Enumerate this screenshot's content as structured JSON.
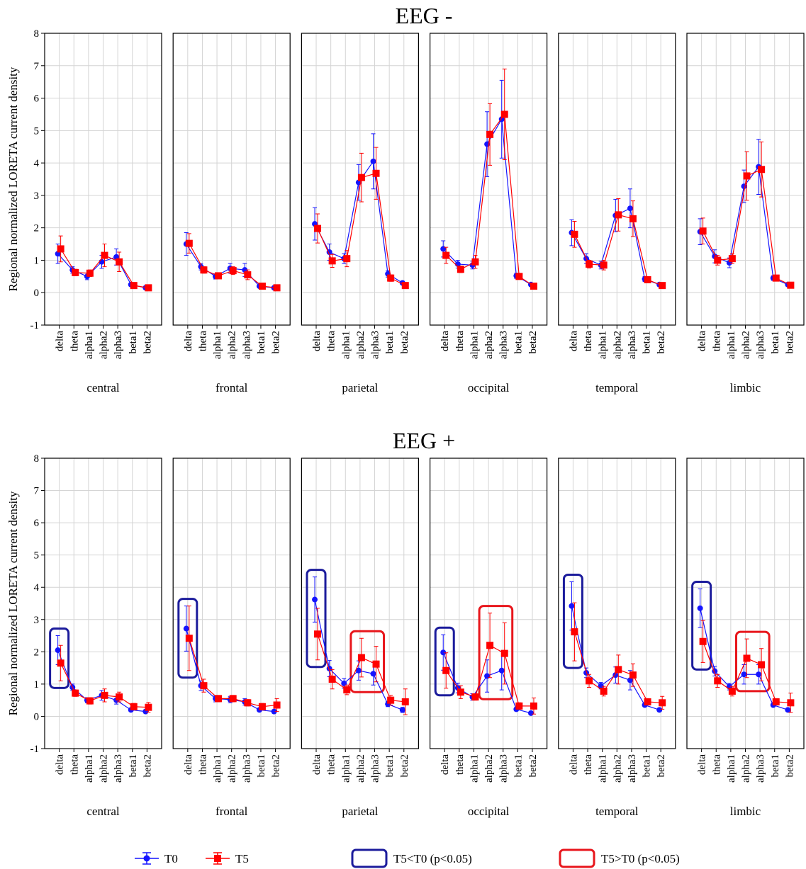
{
  "chart_data": [
    {
      "type": "line",
      "title": "EEG -",
      "ylabel": "Regional normalized LORETA current density",
      "xlabel": "central",
      "categories": [
        "delta",
        "theta",
        "alpha1",
        "alpha2",
        "alpha3",
        "beta1",
        "beta2"
      ],
      "ylim": [
        -1,
        8
      ],
      "yticks": [
        -1,
        0,
        1,
        2,
        3,
        4,
        5,
        6,
        7,
        8
      ],
      "grid": true,
      "series": [
        {
          "name": "T0",
          "color": "#1414ff",
          "marker": "circle",
          "values": [
            1.2,
            0.7,
            0.5,
            0.95,
            1.1,
            0.25,
            0.15
          ],
          "errors": [
            0.3,
            0.1,
            0.1,
            0.2,
            0.25,
            0.05,
            0.03
          ]
        },
        {
          "name": "T5",
          "color": "#ff0000",
          "marker": "square",
          "values": [
            1.35,
            0.62,
            0.6,
            1.15,
            0.95,
            0.22,
            0.15
          ],
          "errors": [
            0.4,
            0.1,
            0.1,
            0.35,
            0.3,
            0.05,
            0.03
          ]
        }
      ],
      "boxes": []
    },
    {
      "type": "line",
      "xlabel": "frontal",
      "categories": [
        "delta",
        "theta",
        "alpha1",
        "alpha2",
        "alpha3",
        "beta1",
        "beta2"
      ],
      "ylim": [
        -1,
        8
      ],
      "yticks": [
        -1,
        0,
        1,
        2,
        3,
        4,
        5,
        6,
        7,
        8
      ],
      "grid": true,
      "series": [
        {
          "name": "T0",
          "color": "#1414ff",
          "marker": "circle",
          "values": [
            1.5,
            0.8,
            0.5,
            0.75,
            0.7,
            0.2,
            0.15
          ],
          "errors": [
            0.35,
            0.1,
            0.08,
            0.15,
            0.2,
            0.04,
            0.03
          ]
        },
        {
          "name": "T5",
          "color": "#ff0000",
          "marker": "square",
          "values": [
            1.52,
            0.7,
            0.52,
            0.68,
            0.55,
            0.2,
            0.15
          ],
          "errors": [
            0.3,
            0.1,
            0.08,
            0.12,
            0.15,
            0.04,
            0.03
          ]
        }
      ],
      "boxes": []
    },
    {
      "type": "line",
      "xlabel": "parietal",
      "categories": [
        "delta",
        "theta",
        "alpha1",
        "alpha2",
        "alpha3",
        "beta1",
        "beta2"
      ],
      "ylim": [
        -1,
        8
      ],
      "yticks": [
        -1,
        0,
        1,
        2,
        3,
        4,
        5,
        6,
        7,
        8
      ],
      "grid": true,
      "series": [
        {
          "name": "T0",
          "color": "#1414ff",
          "marker": "circle",
          "values": [
            2.12,
            1.25,
            1.05,
            3.4,
            4.05,
            0.58,
            0.3
          ],
          "errors": [
            0.5,
            0.25,
            0.15,
            0.55,
            0.85,
            0.1,
            0.05
          ]
        },
        {
          "name": "T5",
          "color": "#ff0000",
          "marker": "square",
          "values": [
            1.98,
            0.98,
            1.05,
            3.55,
            3.68,
            0.45,
            0.22
          ],
          "errors": [
            0.45,
            0.2,
            0.25,
            0.75,
            0.8,
            0.1,
            0.05
          ]
        }
      ],
      "boxes": []
    },
    {
      "type": "line",
      "xlabel": "occipital",
      "categories": [
        "delta",
        "theta",
        "alpha1",
        "alpha2",
        "alpha3",
        "beta1",
        "beta2"
      ],
      "ylim": [
        -1,
        8
      ],
      "yticks": [
        -1,
        0,
        1,
        2,
        3,
        4,
        5,
        6,
        7,
        8
      ],
      "grid": true,
      "series": [
        {
          "name": "T0",
          "color": "#1414ff",
          "marker": "circle",
          "values": [
            1.35,
            0.88,
            0.85,
            4.58,
            5.35,
            0.52,
            0.25
          ],
          "errors": [
            0.25,
            0.12,
            0.12,
            1.0,
            1.2,
            0.08,
            0.05
          ]
        },
        {
          "name": "T5",
          "color": "#ff0000",
          "marker": "square",
          "values": [
            1.15,
            0.72,
            0.95,
            4.88,
            5.5,
            0.5,
            0.2
          ],
          "errors": [
            0.25,
            0.1,
            0.2,
            0.95,
            1.4,
            0.08,
            0.05
          ]
        }
      ],
      "boxes": []
    },
    {
      "type": "line",
      "xlabel": "temporal",
      "categories": [
        "delta",
        "theta",
        "alpha1",
        "alpha2",
        "alpha3",
        "beta1",
        "beta2"
      ],
      "ylim": [
        -1,
        8
      ],
      "yticks": [
        -1,
        0,
        1,
        2,
        3,
        4,
        5,
        6,
        7,
        8
      ],
      "grid": true,
      "series": [
        {
          "name": "T0",
          "color": "#1414ff",
          "marker": "circle",
          "values": [
            1.85,
            1.05,
            0.85,
            2.38,
            2.6,
            0.42,
            0.25
          ],
          "errors": [
            0.4,
            0.15,
            0.12,
            0.5,
            0.6,
            0.08,
            0.05
          ]
        },
        {
          "name": "T5",
          "color": "#ff0000",
          "marker": "square",
          "values": [
            1.8,
            0.88,
            0.85,
            2.4,
            2.28,
            0.4,
            0.22
          ],
          "errors": [
            0.4,
            0.12,
            0.15,
            0.5,
            0.55,
            0.08,
            0.05
          ]
        }
      ],
      "boxes": []
    },
    {
      "type": "line",
      "xlabel": "limbic",
      "categories": [
        "delta",
        "theta",
        "alpha1",
        "alpha2",
        "alpha3",
        "beta1",
        "beta2"
      ],
      "ylim": [
        -1,
        8
      ],
      "yticks": [
        -1,
        0,
        1,
        2,
        3,
        4,
        5,
        6,
        7,
        8
      ],
      "grid": true,
      "series": [
        {
          "name": "T0",
          "color": "#1414ff",
          "marker": "circle",
          "values": [
            1.88,
            1.12,
            0.92,
            3.28,
            3.88,
            0.45,
            0.25
          ],
          "errors": [
            0.4,
            0.2,
            0.15,
            0.5,
            0.85,
            0.07,
            0.04
          ]
        },
        {
          "name": "T5",
          "color": "#ff0000",
          "marker": "square",
          "values": [
            1.9,
            1.0,
            1.05,
            3.6,
            3.8,
            0.45,
            0.23
          ],
          "errors": [
            0.4,
            0.15,
            0.15,
            0.75,
            0.85,
            0.07,
            0.04
          ]
        }
      ],
      "boxes": []
    },
    {
      "type": "line",
      "title": "EEG +",
      "ylabel": "Regional normalized LORETA current density",
      "xlabel": "central",
      "categories": [
        "delta",
        "theta",
        "alpha1",
        "alpha2",
        "alpha3",
        "beta1",
        "beta2"
      ],
      "ylim": [
        -1,
        8
      ],
      "yticks": [
        -1,
        0,
        1,
        2,
        3,
        4,
        5,
        6,
        7,
        8
      ],
      "grid": true,
      "series": [
        {
          "name": "T0",
          "color": "#1414ff",
          "marker": "circle",
          "values": [
            2.05,
            0.9,
            0.5,
            0.65,
            0.5,
            0.2,
            0.15
          ],
          "errors": [
            0.45,
            0.1,
            0.08,
            0.15,
            0.12,
            0.05,
            0.05
          ]
        },
        {
          "name": "T5",
          "color": "#ff0000",
          "marker": "square",
          "values": [
            1.65,
            0.72,
            0.48,
            0.65,
            0.6,
            0.3,
            0.28
          ],
          "errors": [
            0.55,
            0.1,
            0.1,
            0.2,
            0.15,
            0.1,
            0.15
          ]
        }
      ],
      "boxes": [
        {
          "legend": "T5<T0 (p<0.05)",
          "categories": [
            "delta"
          ]
        }
      ]
    },
    {
      "type": "line",
      "xlabel": "frontal",
      "categories": [
        "delta",
        "theta",
        "alpha1",
        "alpha2",
        "alpha3",
        "beta1",
        "beta2"
      ],
      "ylim": [
        -1,
        8
      ],
      "yticks": [
        -1,
        0,
        1,
        2,
        3,
        4,
        5,
        6,
        7,
        8
      ],
      "grid": true,
      "series": [
        {
          "name": "T0",
          "color": "#1414ff",
          "marker": "circle",
          "values": [
            2.72,
            0.95,
            0.55,
            0.52,
            0.45,
            0.2,
            0.15
          ],
          "errors": [
            0.7,
            0.15,
            0.1,
            0.1,
            0.1,
            0.05,
            0.05
          ]
        },
        {
          "name": "T5",
          "color": "#ff0000",
          "marker": "square",
          "values": [
            2.42,
            0.95,
            0.55,
            0.55,
            0.42,
            0.3,
            0.35
          ],
          "errors": [
            1.0,
            0.2,
            0.1,
            0.1,
            0.1,
            0.1,
            0.2
          ]
        }
      ],
      "boxes": [
        {
          "legend": "T5<T0 (p<0.05)",
          "categories": [
            "delta"
          ]
        }
      ]
    },
    {
      "type": "line",
      "xlabel": "parietal",
      "categories": [
        "delta",
        "theta",
        "alpha1",
        "alpha2",
        "alpha3",
        "beta1",
        "beta2"
      ],
      "ylim": [
        -1,
        8
      ],
      "yticks": [
        -1,
        0,
        1,
        2,
        3,
        4,
        5,
        6,
        7,
        8
      ],
      "grid": true,
      "series": [
        {
          "name": "T0",
          "color": "#1414ff",
          "marker": "circle",
          "values": [
            3.62,
            1.48,
            1.02,
            1.42,
            1.32,
            0.38,
            0.2
          ],
          "errors": [
            0.7,
            0.25,
            0.15,
            0.3,
            0.35,
            0.08,
            0.08
          ]
        },
        {
          "name": "T5",
          "color": "#ff0000",
          "marker": "square",
          "values": [
            2.55,
            1.15,
            0.82,
            1.82,
            1.62,
            0.5,
            0.45
          ],
          "errors": [
            0.8,
            0.3,
            0.15,
            0.6,
            0.55,
            0.15,
            0.4
          ]
        }
      ],
      "boxes": [
        {
          "legend": "T5<T0 (p<0.05)",
          "categories": [
            "delta"
          ]
        },
        {
          "legend": "T5>T0 (p<0.05)",
          "categories": [
            "alpha2",
            "alpha3"
          ]
        }
      ]
    },
    {
      "type": "line",
      "xlabel": "occipital",
      "categories": [
        "delta",
        "theta",
        "alpha1",
        "alpha2",
        "alpha3",
        "beta1",
        "beta2"
      ],
      "ylim": [
        -1,
        8
      ],
      "yticks": [
        -1,
        0,
        1,
        2,
        3,
        4,
        5,
        6,
        7,
        8
      ],
      "grid": true,
      "series": [
        {
          "name": "T0",
          "color": "#1414ff",
          "marker": "circle",
          "values": [
            1.98,
            0.88,
            0.6,
            1.25,
            1.42,
            0.22,
            0.1
          ],
          "errors": [
            0.55,
            0.15,
            0.1,
            0.5,
            0.6,
            0.05,
            0.05
          ]
        },
        {
          "name": "T5",
          "color": "#ff0000",
          "marker": "square",
          "values": [
            1.42,
            0.75,
            0.6,
            2.2,
            1.95,
            0.32,
            0.32
          ],
          "errors": [
            0.55,
            0.2,
            0.1,
            1.0,
            0.95,
            0.1,
            0.25
          ]
        }
      ],
      "boxes": [
        {
          "legend": "T5<T0 (p<0.05)",
          "categories": [
            "delta"
          ]
        },
        {
          "legend": "T5>T0 (p<0.05)",
          "categories": [
            "alpha2",
            "alpha3"
          ]
        }
      ]
    },
    {
      "type": "line",
      "xlabel": "temporal",
      "categories": [
        "delta",
        "theta",
        "alpha1",
        "alpha2",
        "alpha3",
        "beta1",
        "beta2"
      ],
      "ylim": [
        -1,
        8
      ],
      "yticks": [
        -1,
        0,
        1,
        2,
        3,
        4,
        5,
        6,
        7,
        8
      ],
      "grid": true,
      "series": [
        {
          "name": "T0",
          "color": "#1414ff",
          "marker": "circle",
          "values": [
            3.42,
            1.35,
            0.95,
            1.28,
            1.12,
            0.35,
            0.2
          ],
          "errors": [
            0.75,
            0.15,
            0.1,
            0.25,
            0.3,
            0.05,
            0.05
          ]
        },
        {
          "name": "T5",
          "color": "#ff0000",
          "marker": "square",
          "values": [
            2.62,
            1.1,
            0.78,
            1.45,
            1.28,
            0.45,
            0.42
          ],
          "errors": [
            0.9,
            0.2,
            0.15,
            0.45,
            0.35,
            0.1,
            0.2
          ]
        }
      ],
      "boxes": [
        {
          "legend": "T5<T0 (p<0.05)",
          "categories": [
            "delta"
          ]
        }
      ]
    },
    {
      "type": "line",
      "xlabel": "limbic",
      "categories": [
        "delta",
        "theta",
        "alpha1",
        "alpha2",
        "alpha3",
        "beta1",
        "beta2"
      ],
      "ylim": [
        -1,
        8
      ],
      "yticks": [
        -1,
        0,
        1,
        2,
        3,
        4,
        5,
        6,
        7,
        8
      ],
      "grid": true,
      "series": [
        {
          "name": "T0",
          "color": "#1414ff",
          "marker": "circle",
          "values": [
            3.35,
            1.4,
            0.92,
            1.3,
            1.3,
            0.35,
            0.2
          ],
          "errors": [
            0.6,
            0.15,
            0.1,
            0.3,
            0.3,
            0.05,
            0.05
          ]
        },
        {
          "name": "T5",
          "color": "#ff0000",
          "marker": "square",
          "values": [
            2.32,
            1.1,
            0.78,
            1.8,
            1.6,
            0.45,
            0.42
          ],
          "errors": [
            0.65,
            0.2,
            0.15,
            0.6,
            0.5,
            0.1,
            0.3
          ]
        }
      ],
      "boxes": [
        {
          "legend": "T5<T0 (p<0.05)",
          "categories": [
            "delta"
          ]
        },
        {
          "legend": "T5>T0 (p<0.05)",
          "categories": [
            "alpha2",
            "alpha3"
          ]
        }
      ]
    }
  ],
  "significance_legend": [
    {
      "label": "T5<T0 (p<0.05)",
      "color": "#1c1c9c"
    },
    {
      "label": "T5>T0 (p<0.05)",
      "color": "#e8161c"
    }
  ]
}
